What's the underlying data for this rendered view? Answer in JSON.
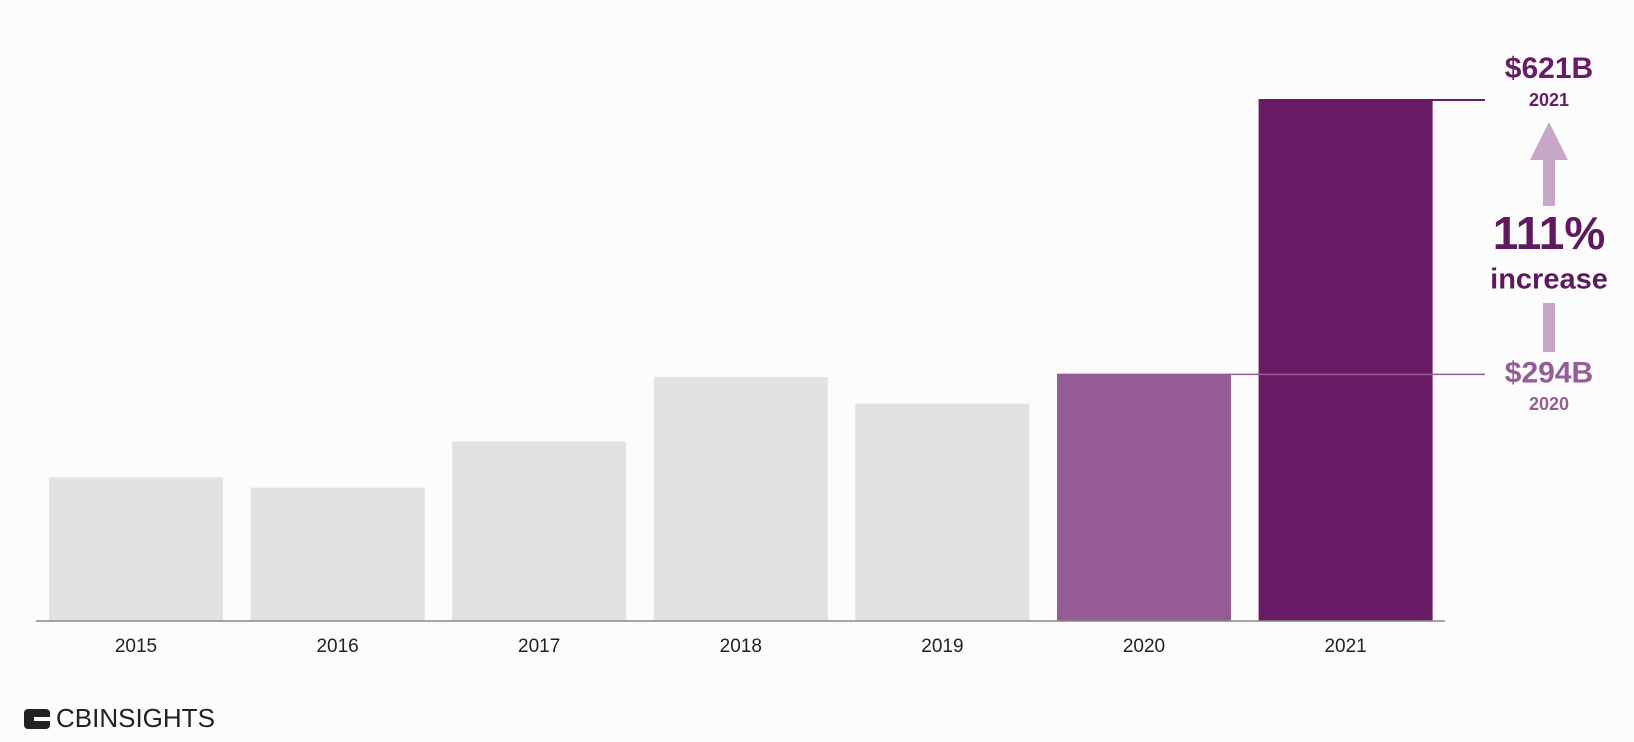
{
  "chart_data": {
    "type": "bar",
    "categories": [
      "2015",
      "2016",
      "2017",
      "2018",
      "2019",
      "2020",
      "2021"
    ],
    "values": [
      171,
      159,
      214,
      291,
      259,
      294,
      621
    ],
    "value_labels": [
      null,
      null,
      null,
      null,
      null,
      "$294B",
      "$621B"
    ],
    "colors": [
      "#e2e2e2",
      "#e2e2e2",
      "#e2e2e2",
      "#e2e2e2",
      "#e2e2e2",
      "#955c96",
      "#691b66"
    ],
    "annotation": "111%",
    "annotation_subtitle": "increase",
    "source_logo": "CBINSIGHTS"
  }
}
